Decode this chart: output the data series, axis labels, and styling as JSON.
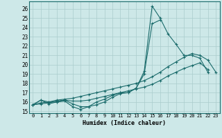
{
  "xlabel": "Humidex (Indice chaleur)",
  "bg_color": "#cde8e8",
  "line_color": "#1a6b6b",
  "grid_color": "#aacccc",
  "ylim": [
    14.8,
    26.8
  ],
  "xlim": [
    -0.5,
    23.5
  ],
  "yticks": [
    15,
    16,
    17,
    18,
    19,
    20,
    21,
    22,
    23,
    24,
    25,
    26
  ],
  "xticks": [
    0,
    1,
    2,
    3,
    4,
    5,
    6,
    7,
    8,
    9,
    10,
    11,
    12,
    13,
    14,
    15,
    16,
    17,
    18,
    19,
    20,
    21,
    22,
    23
  ],
  "line1_x": [
    0,
    1,
    2,
    3,
    4,
    5,
    6,
    7,
    8,
    9,
    10,
    11,
    12,
    13,
    14,
    15,
    16,
    17,
    18,
    19,
    20,
    21,
    22
  ],
  "line1_y": [
    15.7,
    16.2,
    16.0,
    16.0,
    16.1,
    15.5,
    15.2,
    15.5,
    16.0,
    16.3,
    16.7,
    17.0,
    17.0,
    17.5,
    19.3,
    26.3,
    25.0,
    23.3,
    22.2,
    21.0,
    21.0,
    20.7,
    19.2
  ],
  "line2_x": [
    0,
    1,
    2,
    3,
    4,
    5,
    6,
    7,
    8,
    9,
    10,
    11,
    12,
    13,
    14,
    15,
    16
  ],
  "line2_y": [
    15.7,
    16.2,
    15.8,
    16.0,
    16.2,
    15.8,
    15.5,
    15.5,
    15.7,
    16.0,
    16.5,
    16.9,
    17.0,
    17.5,
    19.0,
    24.4,
    24.8
  ],
  "line3_x": [
    0,
    1,
    2,
    3,
    4,
    5,
    6,
    7,
    8,
    9,
    10,
    11,
    12,
    13,
    14,
    15,
    16,
    17,
    18,
    19,
    20,
    21,
    22
  ],
  "line3_y": [
    15.7,
    15.8,
    15.9,
    16.1,
    16.2,
    16.1,
    16.1,
    16.2,
    16.4,
    16.6,
    16.8,
    17.0,
    17.2,
    17.4,
    17.6,
    17.9,
    18.3,
    18.8,
    19.2,
    19.6,
    19.9,
    20.2,
    19.5
  ],
  "line4_x": [
    0,
    1,
    2,
    3,
    4,
    5,
    6,
    7,
    8,
    9,
    10,
    11,
    12,
    13,
    14,
    15,
    16,
    17,
    18,
    19,
    20,
    21,
    22,
    23
  ],
  "line4_y": [
    15.7,
    15.9,
    16.0,
    16.2,
    16.3,
    16.4,
    16.6,
    16.8,
    17.0,
    17.2,
    17.4,
    17.6,
    17.8,
    18.0,
    18.3,
    18.7,
    19.2,
    19.8,
    20.3,
    20.8,
    21.2,
    21.0,
    20.5,
    19.2
  ]
}
